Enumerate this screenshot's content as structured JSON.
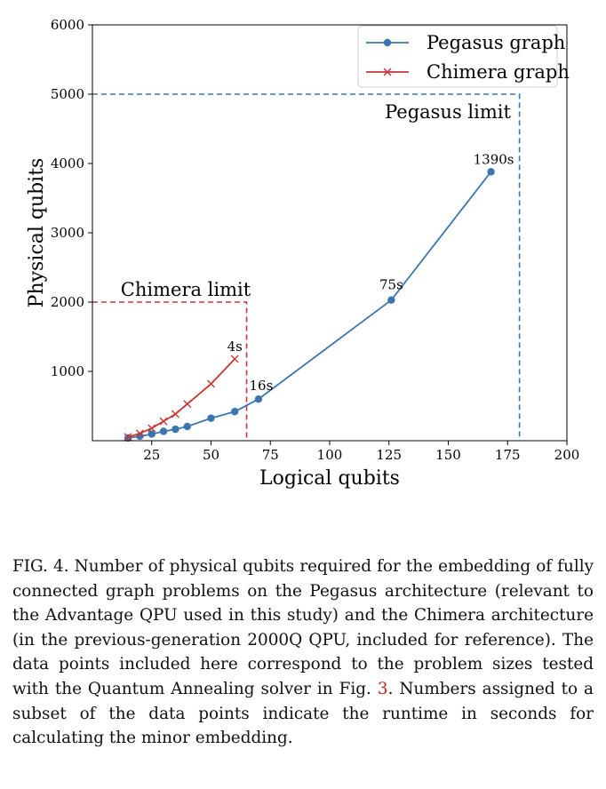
{
  "chart_data": {
    "type": "line",
    "xlabel": "Logical qubits",
    "ylabel": "Physical qubits",
    "xlim": [
      0,
      200
    ],
    "ylim": [
      0,
      6000
    ],
    "xticks": [
      25,
      50,
      75,
      100,
      125,
      150,
      175,
      200
    ],
    "yticks": [
      1000,
      2000,
      3000,
      4000,
      5000,
      6000
    ],
    "legend_position": "top-right",
    "grid": false,
    "series": [
      {
        "name": "Pegasus graph",
        "color": "#3b75af",
        "marker": "circle",
        "x": [
          15,
          20,
          25,
          30,
          35,
          40,
          50,
          60,
          70,
          126,
          168
        ],
        "y": [
          40,
          65,
          95,
          135,
          165,
          205,
          325,
          420,
          600,
          2030,
          3880
        ]
      },
      {
        "name": "Chimera graph",
        "color": "#c83737",
        "marker": "x",
        "x": [
          15,
          20,
          25,
          30,
          35,
          40,
          50,
          60
        ],
        "y": [
          55,
          105,
          180,
          280,
          385,
          530,
          820,
          1180
        ]
      }
    ],
    "limits": [
      {
        "label": "Pegasus limit",
        "x": 180,
        "y": 5000,
        "color": "#3b75af"
      },
      {
        "label": "Chimera limit",
        "x": 65,
        "y": 2000,
        "color": "#c83737"
      }
    ],
    "annotations": [
      {
        "text": "1390s",
        "x": 168,
        "y": 3880
      },
      {
        "text": "75s",
        "x": 126,
        "y": 2030
      },
      {
        "text": "16s",
        "x": 70,
        "y": 600
      },
      {
        "text": "4s",
        "x": 60,
        "y": 1180
      }
    ]
  },
  "caption": {
    "before_ref": "FIG. 4. Number of physical qubits required for the embedding of fully connected graph problems on the Pegasus architecture (relevant to the Advantage QPU used in this study) and the Chimera architecture (in the previous-generation 2000Q QPU, included for reference). The data points included here correspond to the problem sizes tested with the Quantum Annealing solver in Fig. ",
    "ref": "3",
    "after_ref": ". Numbers assigned to a subset of the data points indicate the runtime in seconds for calculating the minor embedding."
  }
}
